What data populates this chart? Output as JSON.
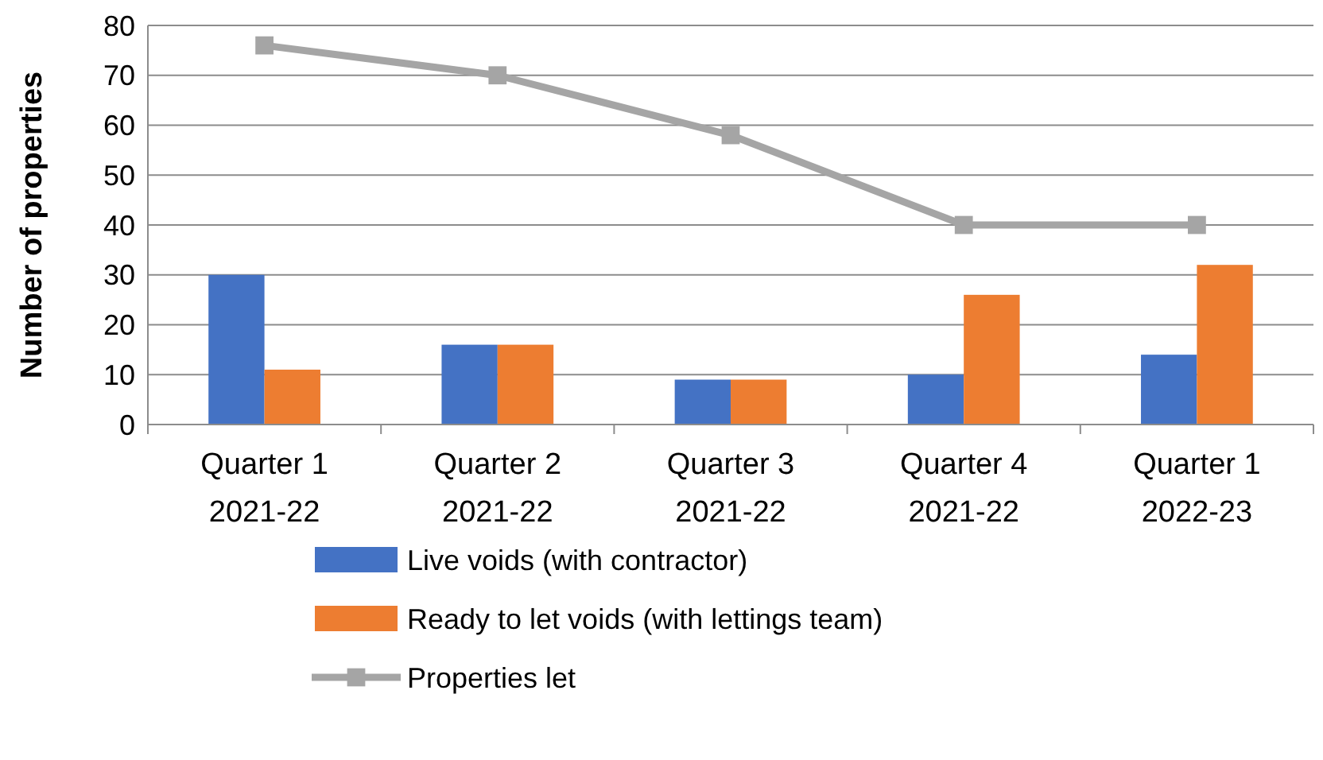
{
  "chart_data": {
    "type": "bar",
    "ylabel": "Number of properties",
    "categories": [
      "Quarter 1\n2021-22",
      "Quarter 2\n2021-22",
      "Quarter 3\n2021-22",
      "Quarter 4\n2021-22",
      "Quarter 1\n2022-23"
    ],
    "series": [
      {
        "name": "Live voids (with contractor)",
        "color": "#4472c4",
        "values": [
          30,
          16,
          9,
          10,
          14
        ]
      },
      {
        "name": "Ready to let voids (with lettings team)",
        "color": "#ed7d31",
        "values": [
          11,
          16,
          9,
          26,
          32
        ]
      },
      {
        "name": "Properties let",
        "type": "line",
        "color": "#a5a5a5",
        "values": [
          76,
          70,
          58,
          40,
          40
        ],
        "marker": "square"
      }
    ],
    "ylim": [
      0,
      80
    ],
    "yticks": [
      0,
      10,
      20,
      30,
      40,
      50,
      60,
      70,
      80
    ],
    "grid": "y",
    "legend": "bottom"
  }
}
